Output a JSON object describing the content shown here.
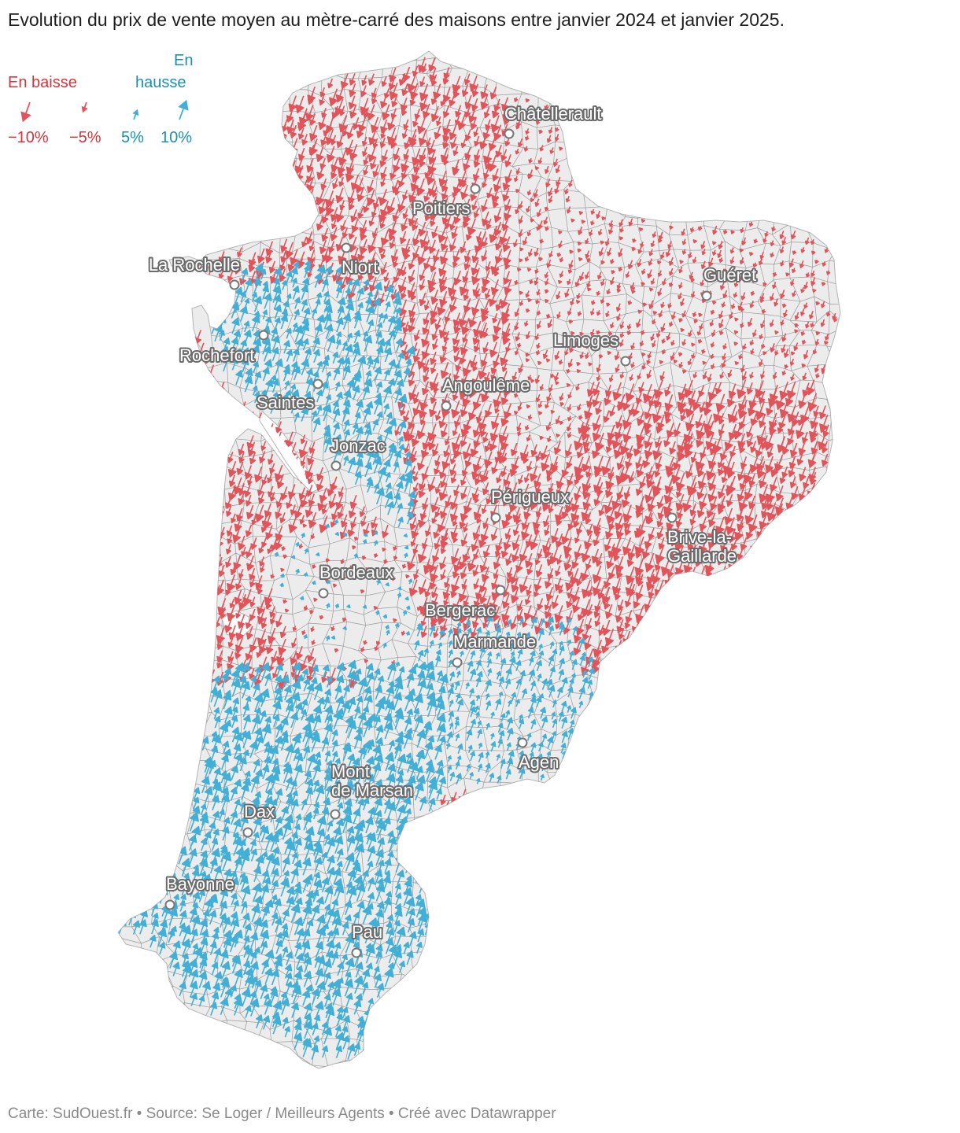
{
  "title": "Evolution du prix de vente moyen au mètre-carré des maisons entre janvier 2024 et janvier 2025.",
  "legend": {
    "down_label": "En baisse",
    "up_label_line1": "En",
    "up_label_line2": "hausse",
    "scale": [
      {
        "label": "−10%",
        "value": -10
      },
      {
        "label": "−5%",
        "value": -5
      },
      {
        "label": "5%",
        "value": 5
      },
      {
        "label": "10%",
        "value": 10
      }
    ]
  },
  "colors": {
    "decrease": "#e2535a",
    "increase": "#42afd6",
    "land": "#ececec",
    "borders": "#9a9a9a"
  },
  "cities": [
    {
      "name": "Châtellerault"
    },
    {
      "name": "Poitiers"
    },
    {
      "name": "Niort"
    },
    {
      "name": "La Rochelle"
    },
    {
      "name": "Guéret"
    },
    {
      "name": "Rochefort"
    },
    {
      "name": "Limoges"
    },
    {
      "name": "Angoulême"
    },
    {
      "name": "Saintes"
    },
    {
      "name": "Jonzac"
    },
    {
      "name": "Périgueux"
    },
    {
      "name": "Brive-la-Gaillarde",
      "lines": [
        "Brive-la-",
        "Gaillarde"
      ]
    },
    {
      "name": "Bordeaux"
    },
    {
      "name": "Bergerac"
    },
    {
      "name": "Marmande"
    },
    {
      "name": "Agen"
    },
    {
      "name": "Mont de Marsan",
      "lines": [
        "Mont",
        "de Marsan"
      ]
    },
    {
      "name": "Dax"
    },
    {
      "name": "Bayonne"
    },
    {
      "name": "Pau"
    }
  ],
  "footer": "Carte: SudOuest.fr • Source: Se Loger / Meilleurs Agents • Créé avec Datawrapper"
}
